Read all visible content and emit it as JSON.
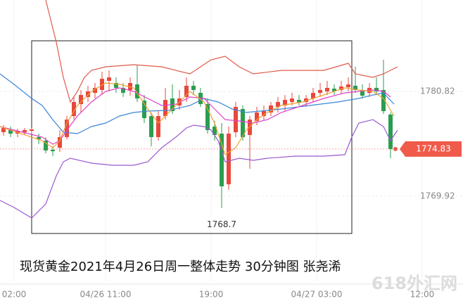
{
  "chart_data": {
    "type": "candlestick",
    "title": "现货黄金2021年4月26日周一整体走势  30分钟图 张尧浠",
    "watermark": "618外汇网",
    "up_color": "#e8473c",
    "down_color": "#2a9d4f",
    "open": [
      1776.58,
      1776.8,
      1776.43,
      1776.58,
      1776.72,
      1776.07,
      1775.7,
      1774.75,
      1774.97,
      1776.07,
      1778.26,
      1779.5,
      1780.24,
      1780.67,
      1780.97,
      1781.92,
      1781.7,
      1781.19,
      1780.97,
      1781.55,
      1779.87,
      1778.26,
      1776.07,
      1778.26,
      1780.09,
      1779.36,
      1780.24,
      1781.41,
      1780.67,
      1779.5,
      1777.16,
      1776.43,
      1771.16,
      1776.58,
      1778.99,
      1776.29,
      1777.75,
      1778.26,
      1778.63,
      1779.21,
      1779.36,
      1779.72,
      1779.94,
      1779.72,
      1780.09,
      1780.67,
      1780.82,
      1781.11,
      1780.97,
      1781.26,
      1781.41,
      1780.97,
      1780.67,
      1781.19,
      1780.97,
      1778.41
    ],
    "high": [
      1777.31,
      1777.16,
      1776.94,
      1777.02,
      1777.02,
      1776.43,
      1776.07,
      1775.11,
      1776.8,
      1778.26,
      1780.24,
      1780.97,
      1781.41,
      1781.7,
      1782.87,
      1783.01,
      1782.28,
      1781.7,
      1782.28,
      1783.53,
      1780.45,
      1778.63,
      1778.77,
      1781.19,
      1781.55,
      1780.97,
      1782.28,
      1781.92,
      1781.19,
      1780.09,
      1777.75,
      1777.53,
      1777.16,
      1779.72,
      1779.36,
      1778.26,
      1779.21,
      1779.36,
      1779.72,
      1780.24,
      1780.45,
      1780.67,
      1780.45,
      1780.45,
      1781.19,
      1781.7,
      1781.92,
      1781.55,
      1781.92,
      1782.28,
      1783.38,
      1781.55,
      1781.7,
      1782.28,
      1784.11,
      1778.63
    ],
    "low": [
      1776.21,
      1776.07,
      1776.07,
      1776.29,
      1776.43,
      1775.33,
      1774.38,
      1774.09,
      1774.53,
      1775.85,
      1777.89,
      1778.63,
      1779.72,
      1780.09,
      1780.45,
      1780.82,
      1780.67,
      1780.24,
      1780.38,
      1779.72,
      1777.53,
      1775.11,
      1775.7,
      1777.89,
      1778.48,
      1778.92,
      1779.72,
      1780.45,
      1779.21,
      1776.43,
      1775.7,
      1768.7,
      1770.58,
      1776.07,
      1775.7,
      1772.77,
      1777.31,
      1777.75,
      1778.26,
      1778.63,
      1778.77,
      1779.36,
      1779.36,
      1779.21,
      1779.72,
      1780.24,
      1780.45,
      1780.45,
      1780.6,
      1780.82,
      1780.67,
      1780.09,
      1780.24,
      1780.45,
      1778.48,
      1773.87
    ],
    "close": [
      1777.02,
      1776.43,
      1776.72,
      1776.8,
      1776.87,
      1775.85,
      1774.68,
      1774.6,
      1776.07,
      1777.89,
      1779.72,
      1780.45,
      1780.82,
      1781.19,
      1782.14,
      1782.28,
      1781.19,
      1780.67,
      1781.7,
      1780.09,
      1778.04,
      1776.07,
      1778.26,
      1779.94,
      1778.77,
      1780.09,
      1781.41,
      1780.97,
      1779.5,
      1776.8,
      1776.29,
      1770.95,
      1776.43,
      1779.21,
      1776.07,
      1777.89,
      1778.63,
      1778.77,
      1779.36,
      1779.72,
      1779.94,
      1780.09,
      1779.65,
      1780.09,
      1780.67,
      1780.97,
      1781.19,
      1780.82,
      1781.33,
      1781.55,
      1780.97,
      1780.38,
      1781.19,
      1780.82,
      1778.77,
      1774.83
    ],
    "lines": [
      {
        "color": "#e05a4a",
        "x": [
          6,
          7.5,
          8.5,
          9.5,
          10.5,
          11.5,
          12.5,
          14.5,
          18.5,
          22.5,
          24.5,
          26.5,
          29.5,
          31.5,
          33.5,
          35.5,
          39.5,
          45.5,
          49,
          50,
          52.5,
          54,
          56
        ],
        "values": [
          1790.33,
          1785.94,
          1782.28,
          1779.72,
          1780.82,
          1782.28,
          1783.01,
          1783.38,
          1783.6,
          1783.38,
          1783.01,
          1782.65,
          1784.11,
          1784.48,
          1783.38,
          1782.65,
          1783.01,
          1783.01,
          1783.75,
          1782.65,
          1782.28,
          1782.65,
          1783.38
        ]
      },
      {
        "color": "#3a86d8",
        "x": [
          -0.5,
          1.5,
          4,
          5.5,
          7,
          8.5,
          10.5,
          12.5,
          14.5,
          16.5,
          18.5,
          20.5,
          23.5,
          26.5,
          28.5,
          30.5,
          32.5,
          34.5,
          36.5,
          39.5,
          43.5,
          47.5,
          50.5,
          52.5,
          54,
          55.5
        ],
        "values": [
          1782.65,
          1781.55,
          1780.09,
          1779.36,
          1777.89,
          1776.58,
          1776.43,
          1777.16,
          1777.53,
          1778.26,
          1778.63,
          1778.77,
          1778.85,
          1779.36,
          1780.09,
          1779.72,
          1778.99,
          1778.63,
          1778.77,
          1778.99,
          1779.36,
          1779.72,
          1780.09,
          1780.45,
          1780.67,
          1779.5
        ]
      },
      {
        "color": "#9b59d0",
        "x": [
          -0.5,
          1.5,
          4,
          6,
          7.5,
          8.5,
          9.5,
          12.5,
          15.5,
          18.5,
          20.5,
          22.5,
          24.5,
          26,
          27,
          28.5,
          29.5,
          30.5,
          31.5,
          33.5,
          35.5,
          37.5,
          41.5,
          45.5,
          48.5,
          49.5,
          50.5,
          52.5,
          54,
          55,
          56
        ],
        "values": [
          1769.48,
          1768.75,
          1767.65,
          1769.12,
          1772.04,
          1773.5,
          1773.87,
          1773.36,
          1773.14,
          1773.14,
          1773.5,
          1774.97,
          1776.07,
          1777.02,
          1777.31,
          1777.16,
          1776.8,
          1775.7,
          1773.5,
          1773.87,
          1773.65,
          1773.87,
          1774.09,
          1774.09,
          1774.24,
          1776.07,
          1777.53,
          1777.89,
          1777.16,
          1775.7,
          1776.8
        ]
      },
      {
        "color": "#e040c8",
        "x": [
          -0.5,
          1.5,
          3.5,
          5.5,
          7,
          8,
          9,
          10.5,
          12.5,
          14.5,
          16.5,
          18.5,
          20.5,
          22.5,
          24.5,
          26.5,
          28.5,
          30,
          31.5,
          33.5,
          35.5,
          37.5,
          39.5,
          42.5,
          45.5,
          48.5,
          50.5,
          52.5,
          54,
          55
        ],
        "values": [
          1777.16,
          1776.8,
          1776.43,
          1776.07,
          1775.33,
          1775.7,
          1776.8,
          1778.26,
          1779.72,
          1780.82,
          1781.19,
          1780.82,
          1780.09,
          1779.36,
          1779.5,
          1780.24,
          1780.09,
          1778.99,
          1777.89,
          1777.75,
          1777.53,
          1777.89,
          1778.63,
          1779.36,
          1780.09,
          1780.67,
          1780.82,
          1780.97,
          1780.82,
          1780.24
        ]
      },
      {
        "color": "#f0a030",
        "x": [
          -0.5,
          5.5,
          7,
          8,
          9,
          10.5,
          12.5,
          14.5,
          16.5,
          18.5,
          20.5,
          22,
          23.5,
          25,
          26.5,
          28.5,
          30,
          31.5,
          33,
          34.5,
          36,
          37.5,
          39.5,
          42.5,
          45.5,
          48.5,
          50.5,
          52.5,
          54,
          55.5
        ],
        "values": [
          1777.16,
          1775.7,
          1774.97,
          1775.7,
          1777.53,
          1779.36,
          1780.82,
          1781.7,
          1781.55,
          1781.19,
          1778.99,
          1777.53,
          1778.63,
          1779.72,
          1780.82,
          1779.72,
          1777.53,
          1774.24,
          1774.97,
          1776.8,
          1777.89,
          1778.63,
          1779.36,
          1779.72,
          1780.45,
          1781.19,
          1780.97,
          1780.82,
          1780.09,
          1778.26
        ]
      }
    ],
    "xlim": [
      -0.5,
      65.3
    ],
    "xticks": [
      {
        "value": 1.5,
        "label": "02:00"
      },
      {
        "value": 14.5,
        "label": "04/26 11:00"
      },
      {
        "value": 29.5,
        "label": "19:00"
      },
      {
        "value": 44.5,
        "label": "04/27 03:00"
      },
      {
        "value": 59.5,
        "label": "12:00"
      }
    ],
    "ylim": [
      1761.07,
      1790.33
    ],
    "yticks": [
      1769.92,
      1780.82
    ],
    "grid": true,
    "last_price": 1774.83,
    "last_price_color": "#f05a4a",
    "low_label": 1768.7
  }
}
